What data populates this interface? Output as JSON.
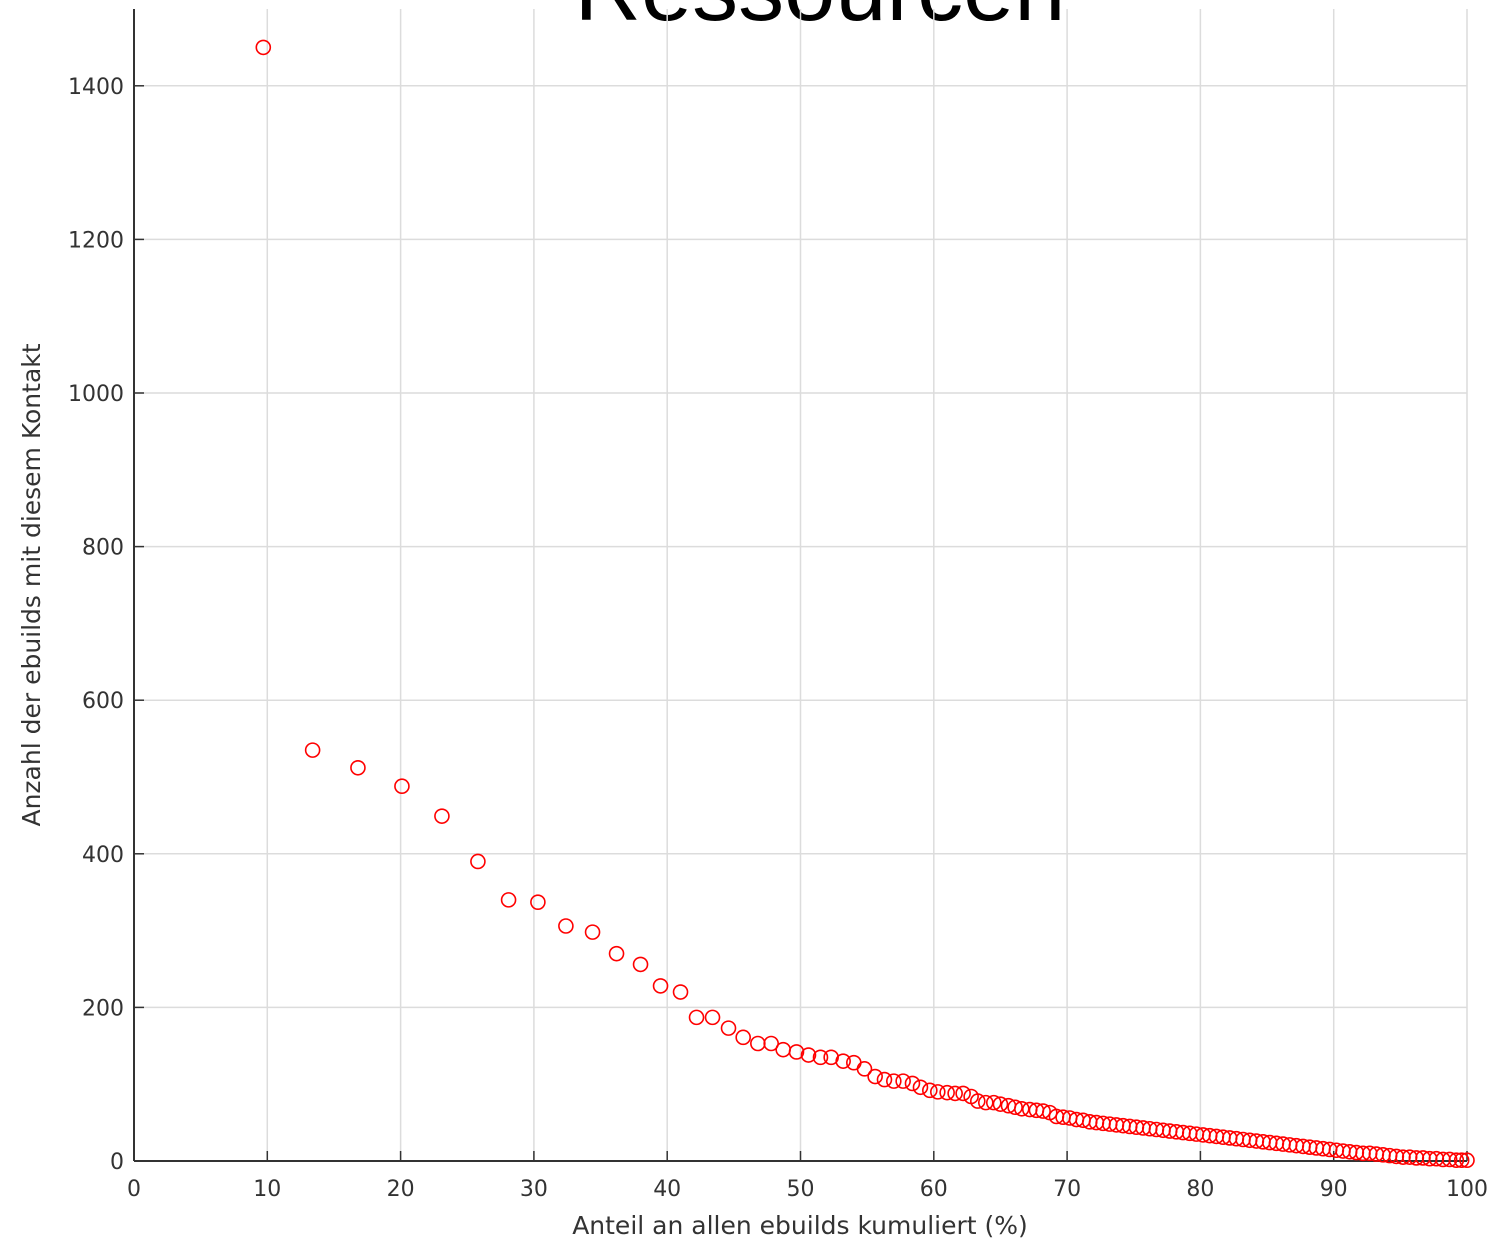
{
  "chart_data": {
    "type": "scatter",
    "title": "Ressourcen",
    "xlabel": "Anteil an allen ebuilds kumuliert (%)",
    "ylabel": "Anzahl der ebuilds mit diesem Kontakt",
    "xlim": [
      0,
      100
    ],
    "ylim": [
      0,
      1500
    ],
    "xticks": [
      0,
      10,
      20,
      30,
      40,
      50,
      60,
      70,
      80,
      90,
      100
    ],
    "yticks": [
      0,
      200,
      400,
      600,
      800,
      1000,
      1200,
      1400
    ],
    "grid": true,
    "series": [
      {
        "color": "#ff0000",
        "x": [
          9.7,
          13.4,
          16.8,
          20.1,
          23.1,
          25.8,
          28.1,
          30.3,
          32.4,
          34.4,
          36.2,
          38.0,
          39.5,
          41.0,
          42.2,
          43.4,
          44.6,
          45.7,
          46.8,
          47.8,
          48.7,
          49.7,
          50.6,
          51.5,
          52.3,
          53.2,
          54.0,
          54.8,
          55.6,
          56.3,
          57.0,
          57.7,
          58.4,
          59.0,
          59.7,
          60.3,
          61.0,
          61.6,
          62.2,
          62.8,
          63.3,
          63.9,
          64.5,
          65.0,
          65.6,
          66.1,
          66.6,
          67.2,
          67.7,
          68.2,
          68.7,
          69.2,
          69.7,
          70.2,
          70.7,
          71.2,
          71.7,
          72.2,
          72.7,
          73.2,
          73.7,
          74.2,
          74.7,
          75.2,
          75.7,
          76.2,
          76.7,
          77.2,
          77.7,
          78.2,
          78.7,
          79.2,
          79.7,
          80.2,
          80.7,
          81.2,
          81.7,
          82.2,
          82.7,
          83.2,
          83.7,
          84.2,
          84.7,
          85.2,
          85.7,
          86.2,
          86.7,
          87.2,
          87.7,
          88.2,
          88.7,
          89.2,
          89.7,
          90.2,
          90.7,
          91.2,
          91.7,
          92.2,
          92.7,
          93.2,
          93.7,
          94.2,
          94.7,
          95.2,
          95.7,
          96.2,
          96.7,
          97.2,
          97.7,
          98.2,
          98.7,
          99.2,
          99.6,
          100
        ],
        "values": [
          1450,
          535,
          512,
          488,
          449,
          390,
          340,
          337,
          306,
          298,
          270,
          256,
          228,
          220,
          187,
          187,
          173,
          161,
          153,
          153,
          145,
          142,
          138,
          135,
          135,
          130,
          128,
          120,
          110,
          106,
          104,
          104,
          101,
          96,
          92,
          90,
          89,
          88,
          88,
          84,
          78,
          76,
          76,
          74,
          72,
          70,
          68,
          67,
          66,
          65,
          63,
          58,
          57,
          56,
          54,
          53,
          51,
          50,
          49,
          48,
          47,
          46,
          45,
          44,
          43,
          42,
          41,
          40,
          39,
          38,
          37,
          36,
          35,
          34,
          33,
          32,
          31,
          30,
          29,
          28,
          27,
          26,
          25,
          24,
          23,
          22,
          21,
          20,
          19,
          18,
          17,
          16,
          15,
          14,
          13,
          12,
          11,
          10,
          10,
          9,
          8,
          7,
          6,
          5,
          5,
          4,
          4,
          3,
          3,
          2,
          2,
          1,
          1,
          1
        ]
      }
    ]
  }
}
